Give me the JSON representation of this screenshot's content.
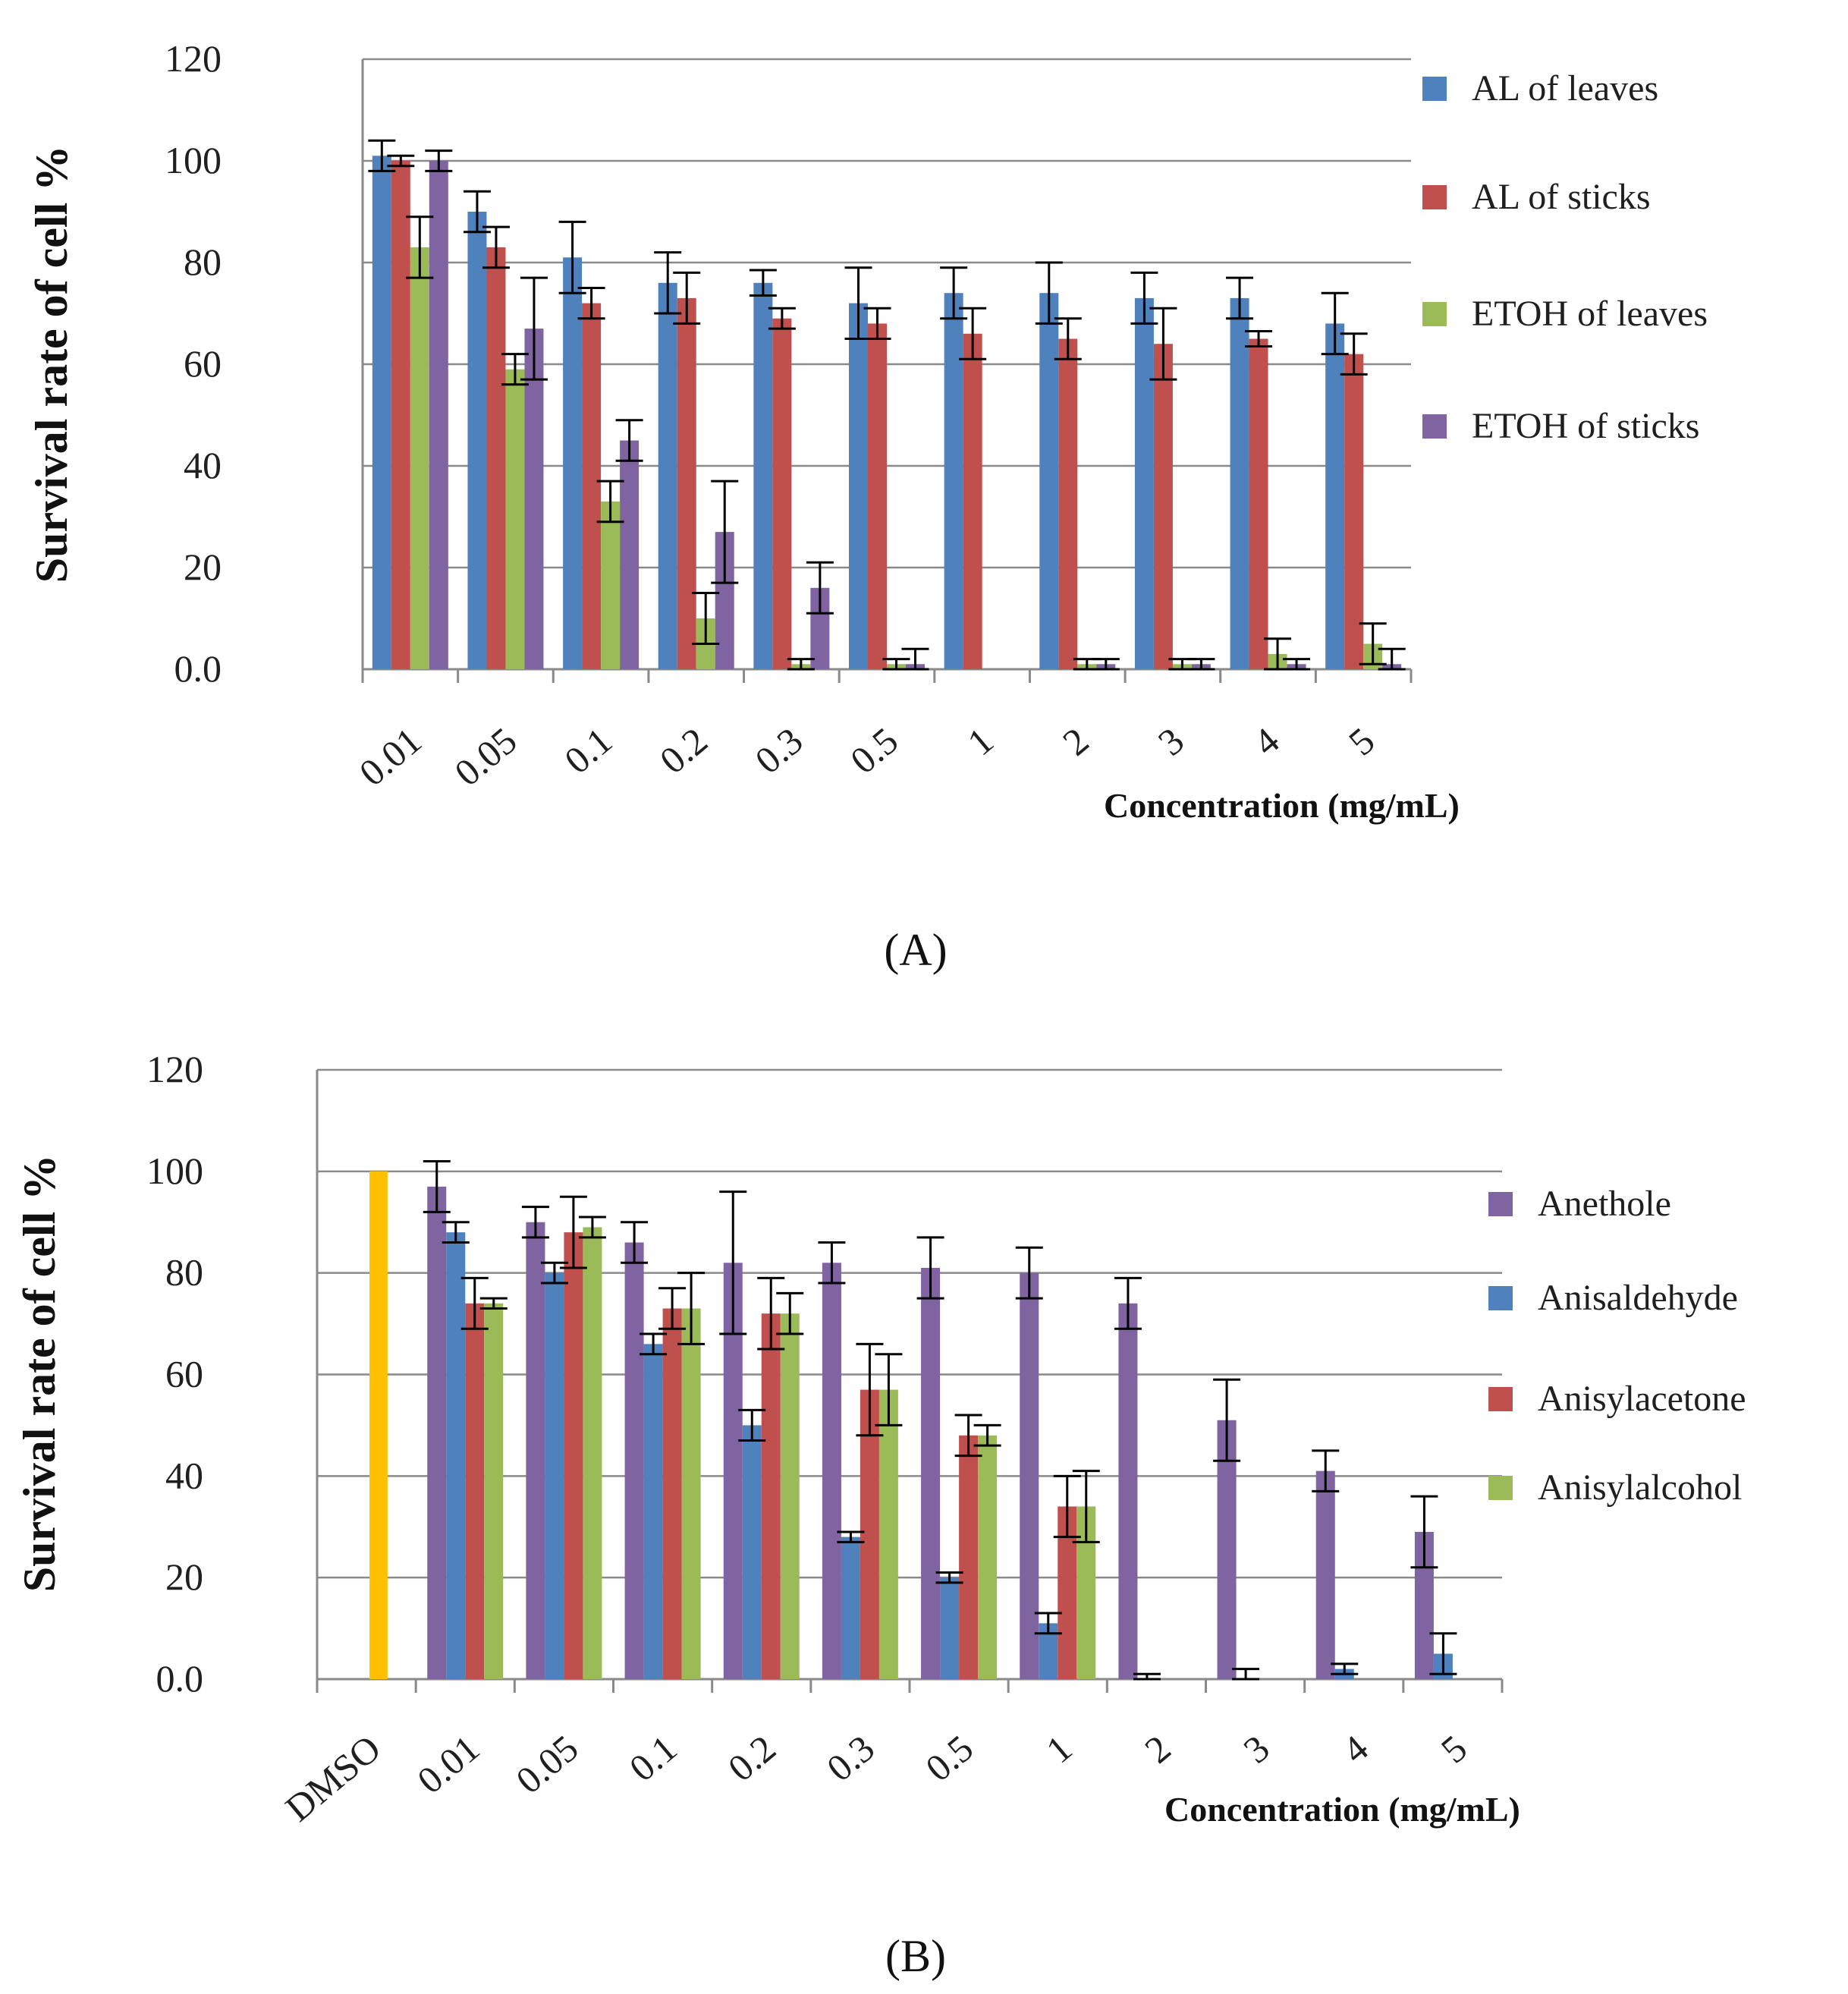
{
  "chart_data": [
    {
      "type": "bar",
      "panel": "A",
      "ylabel": "Survival rate of cell %",
      "xlabel": "Concentration (mg/mL)",
      "yticks": [
        "0.0",
        "20",
        "40",
        "60",
        "80",
        "100",
        "120"
      ],
      "ylim": [
        0,
        120
      ],
      "categories": [
        "0.01",
        "0.05",
        "0.1",
        "0.2",
        "0.3",
        "0.5",
        "1",
        "2",
        "3",
        "4",
        "5"
      ],
      "series": [
        {
          "name": "AL of leaves",
          "color": "#4f81bd",
          "values": [
            101,
            90,
            81,
            76,
            76,
            72,
            74,
            74,
            73,
            73,
            68
          ],
          "errors": [
            3,
            4,
            7,
            6,
            2.5,
            7,
            5,
            6,
            5,
            4,
            6
          ]
        },
        {
          "name": "AL of sticks",
          "color": "#c0504d",
          "values": [
            100,
            83,
            72,
            73,
            69,
            68,
            66,
            65,
            64,
            65,
            62
          ],
          "errors": [
            1,
            4,
            3,
            5,
            2,
            3,
            5,
            4,
            7,
            1.5,
            4
          ]
        },
        {
          "name": "ETOH of leaves",
          "color": "#9bbb59",
          "values": [
            83,
            59,
            33,
            10,
            1,
            1,
            0,
            1,
            1,
            3,
            5
          ],
          "errors": [
            6,
            3,
            4,
            5,
            1,
            1,
            0,
            1,
            1,
            3,
            4
          ]
        },
        {
          "name": "ETOH of sticks",
          "color": "#8064a2",
          "values": [
            100,
            67,
            45,
            27,
            16,
            1,
            0,
            1,
            1,
            1,
            1
          ],
          "errors": [
            2,
            10,
            4,
            10,
            5,
            3,
            0,
            1,
            1,
            1,
            3
          ]
        }
      ]
    },
    {
      "type": "bar",
      "panel": "B",
      "ylabel": "Survival rate of cell %",
      "xlabel": "Concentration (mg/mL)",
      "yticks": [
        "0.0",
        "20",
        "40",
        "60",
        "80",
        "100",
        "120"
      ],
      "ylim": [
        0,
        120
      ],
      "categories": [
        "DMSO",
        "0.01",
        "0.05",
        "0.1",
        "0.2",
        "0.3",
        "0.5",
        "1",
        "2",
        "3",
        "4",
        "5"
      ],
      "control": {
        "category": "DMSO",
        "value": 100,
        "color": "#ffc000"
      },
      "series": [
        {
          "name": "Anethole",
          "color": "#8064a2",
          "values": [
            null,
            97,
            90,
            86,
            82,
            82,
            81,
            80,
            74,
            51,
            41,
            29
          ],
          "errors": [
            null,
            5,
            3,
            4,
            14,
            4,
            6,
            5,
            5,
            8,
            4,
            7
          ]
        },
        {
          "name": "Anisaldehyde",
          "color": "#4f81bd",
          "values": [
            null,
            88,
            80,
            66,
            50,
            28,
            20,
            11,
            0,
            0,
            2,
            5
          ],
          "errors": [
            null,
            2,
            2,
            2,
            3,
            1,
            1,
            2,
            1,
            2,
            1,
            4
          ]
        },
        {
          "name": "Anisylacetone",
          "color": "#c0504d",
          "values": [
            null,
            74,
            88,
            73,
            72,
            57,
            48,
            34,
            0,
            0,
            0,
            0
          ],
          "errors": [
            null,
            5,
            7,
            4,
            7,
            9,
            4,
            6,
            0,
            0,
            0,
            0
          ]
        },
        {
          "name": "Anisylalcohol",
          "color": "#9bbb59",
          "values": [
            null,
            74,
            89,
            73,
            72,
            57,
            48,
            34,
            0,
            0,
            0,
            0
          ],
          "errors": [
            null,
            1,
            2,
            7,
            4,
            7,
            2,
            7,
            0,
            0,
            0,
            0
          ]
        }
      ]
    }
  ],
  "labels": {
    "panel_a": "(A)",
    "panel_b": "(B)"
  }
}
